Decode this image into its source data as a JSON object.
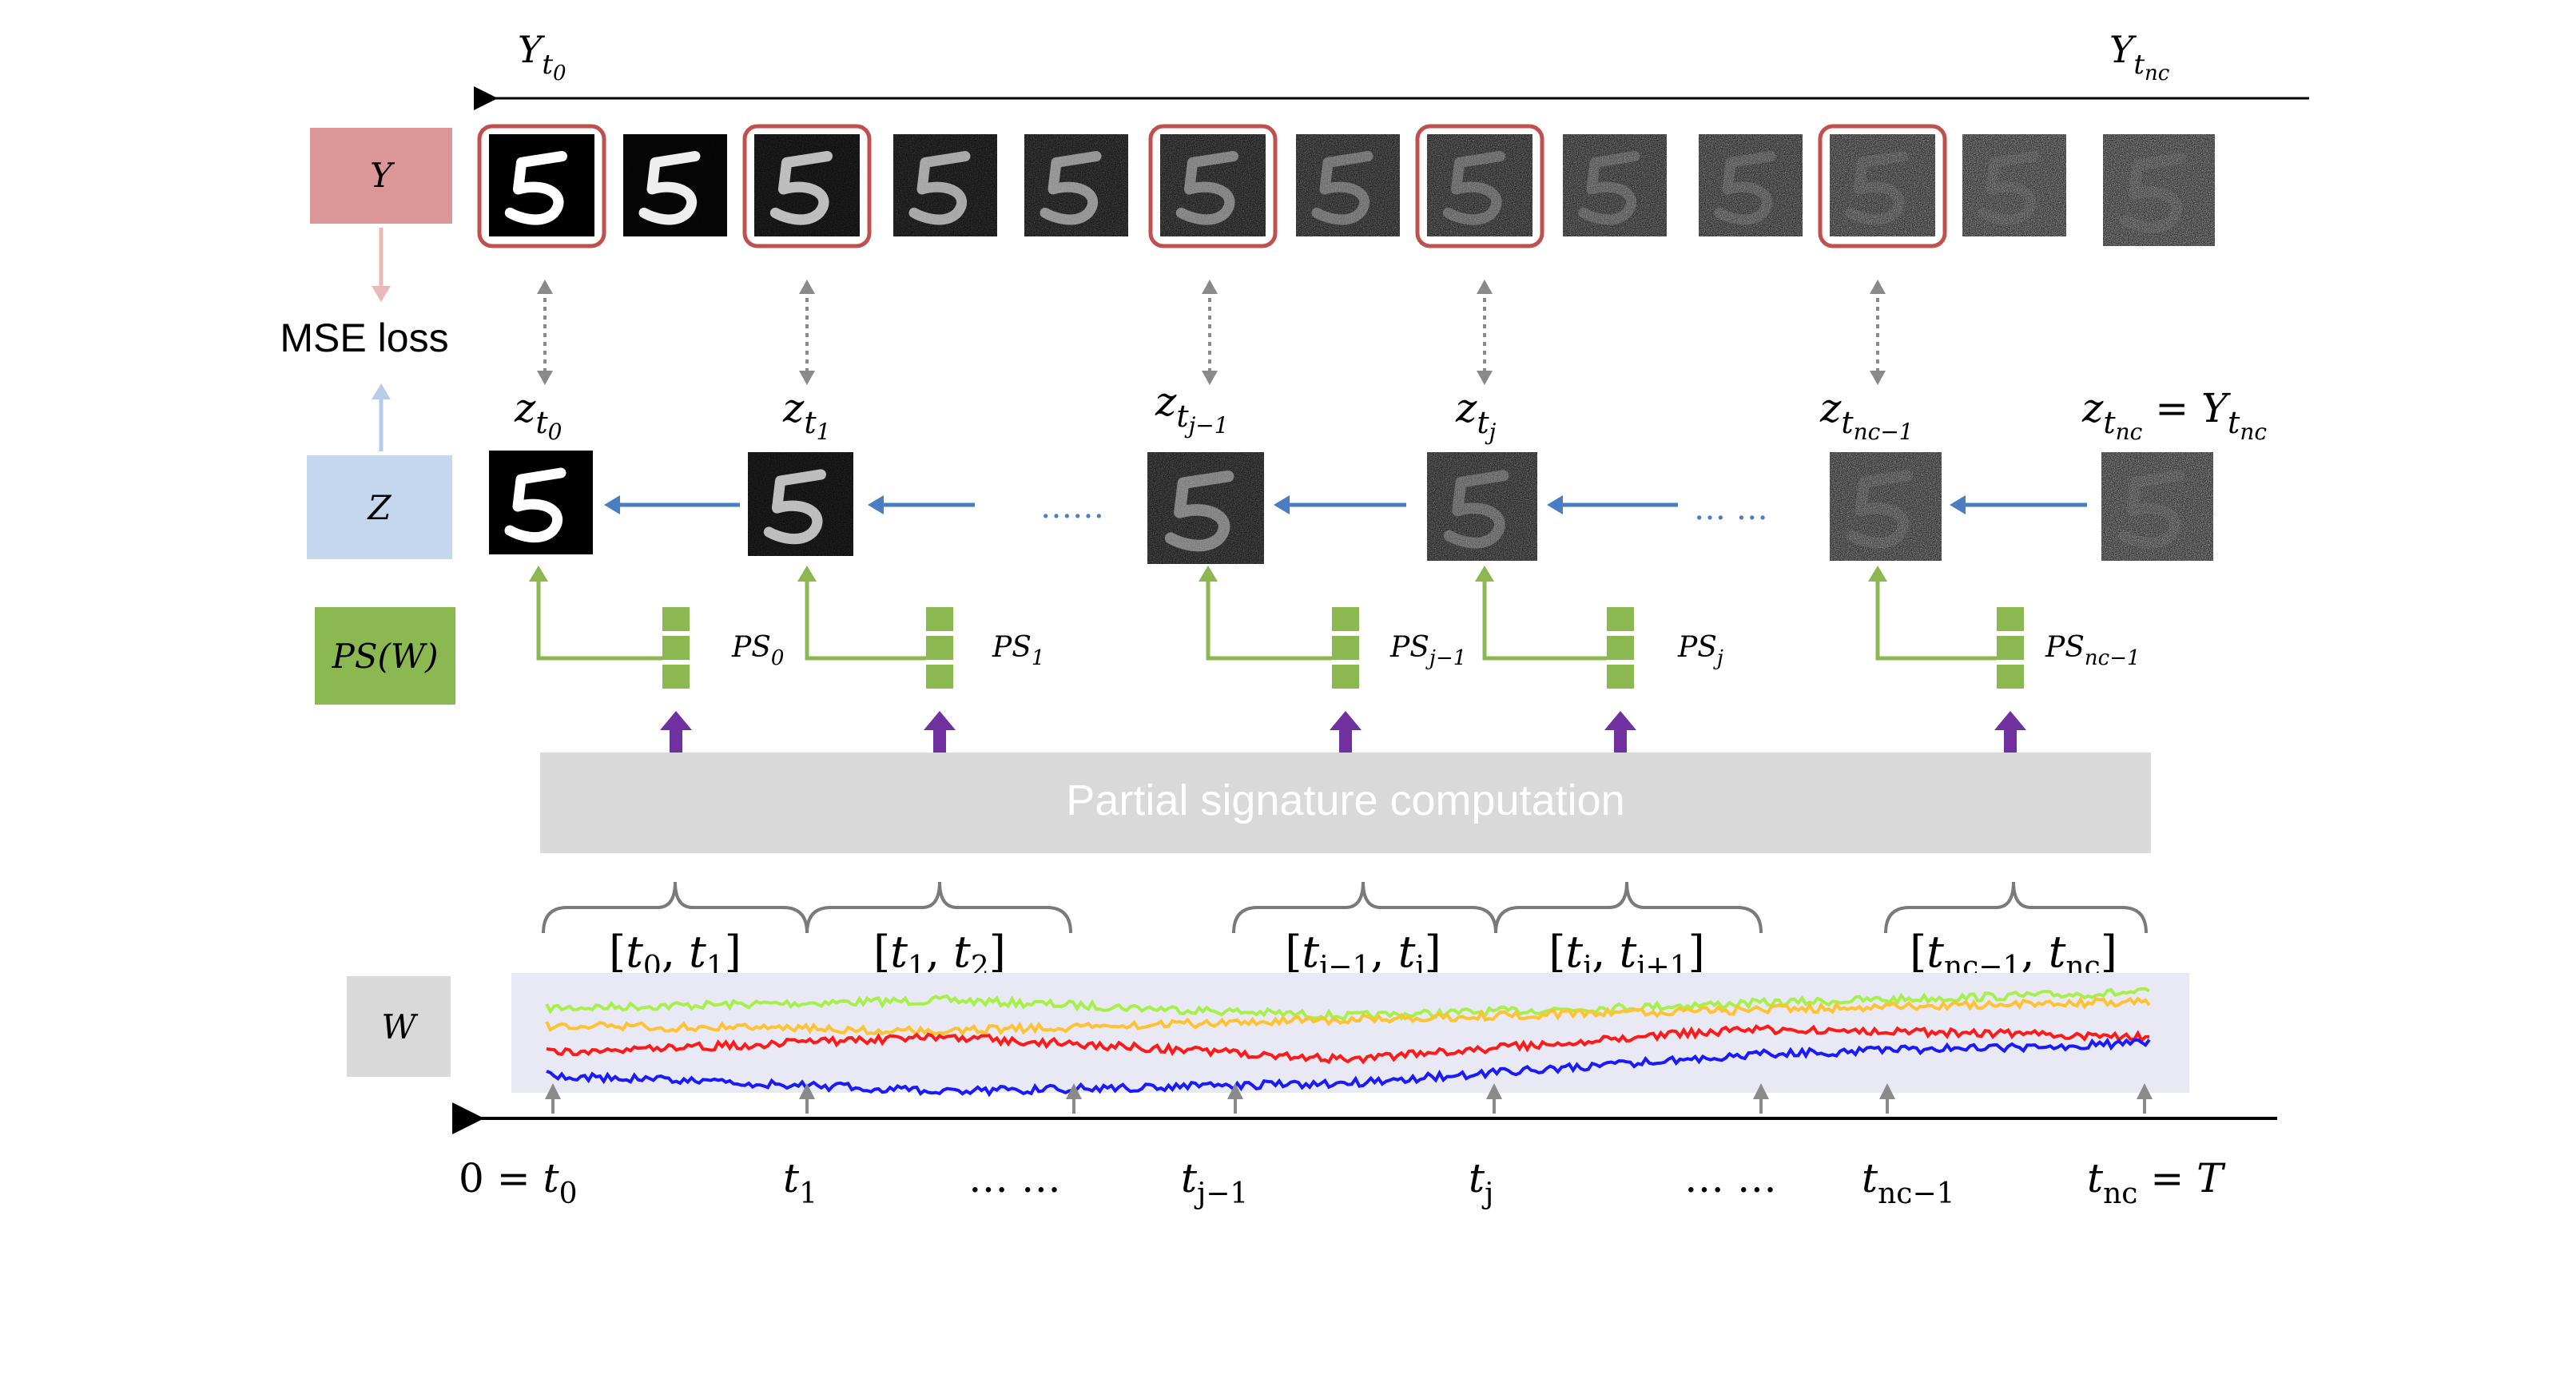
{
  "colors": {
    "y_box": "#DB9797",
    "z_box": "#C4D7EE",
    "ps_box": "#8CB851",
    "w_box": "#D9D9D9",
    "frame_red": "#C0504D",
    "z_arrow": "#4A7EC2",
    "ps_green": "#8CB851",
    "ps_arrow": "#7030A0",
    "band": "#E9E9F5",
    "paths": [
      "#A6F04A",
      "#FFC233",
      "#FF1A1A",
      "#1A1AFF"
    ]
  },
  "labels": {
    "y_box": "Y",
    "z_box": "Z",
    "ps_box": "PS(W)",
    "w_box": "W",
    "mse_loss": "MSE loss",
    "psc_bar": "Partial signature computation",
    "y_left": "Y",
    "y_left_sub": "t",
    "y_left_subsub": "0",
    "y_right": "Y",
    "y_right_sub": "t",
    "y_right_subsub": "nc"
  },
  "y_images": [
    {
      "noise": 0,
      "framed": true
    },
    {
      "noise": 0.06,
      "framed": false
    },
    {
      "noise": 0.25,
      "framed": true
    },
    {
      "noise": 0.35,
      "framed": false
    },
    {
      "noise": 0.45,
      "framed": false
    },
    {
      "noise": 0.55,
      "framed": true
    },
    {
      "noise": 0.65,
      "framed": false
    },
    {
      "noise": 0.72,
      "framed": true
    },
    {
      "noise": 0.8,
      "framed": false
    },
    {
      "noise": 0.85,
      "framed": false
    },
    {
      "noise": 0.9,
      "framed": true
    },
    {
      "noise": 0.94,
      "framed": false
    },
    {
      "noise": 0.98,
      "framed": false
    }
  ],
  "z_nodes": [
    {
      "label": "z",
      "sub": "t",
      "subsub": "0",
      "noise": 0
    },
    {
      "label": "z",
      "sub": "t",
      "subsub": "1",
      "noise": 0.25
    },
    {
      "label": "z",
      "sub": "t",
      "subsub": "j−1",
      "noise": 0.55
    },
    {
      "label": "z",
      "sub": "t",
      "subsub": "j",
      "noise": 0.72
    },
    {
      "label": "z",
      "sub": "t",
      "subsub": "nc−1",
      "noise": 0.9
    },
    {
      "label": "z",
      "sub": "t",
      "subsub": "nc",
      "noise": 0.98,
      "suffix": " = Y",
      "suffix_sub": "t",
      "suffix_subsub": "nc"
    }
  ],
  "z_dots": [
    "……",
    "… …"
  ],
  "ps_items": [
    {
      "label": "PS",
      "sub": "0"
    },
    {
      "label": "PS",
      "sub": "1"
    },
    {
      "label": "PS",
      "sub": "j−1"
    },
    {
      "label": "PS",
      "sub": "j"
    },
    {
      "label": "PS",
      "sub": "nc−1"
    }
  ],
  "intervals": [
    "[t0, t1]",
    "[t1, t2]",
    "[tj−1, tj]",
    "[tj, tj+1]",
    "[tnc−1, tnc]"
  ],
  "interval_parts": [
    {
      "a": "t",
      "as": "0",
      "b": "t",
      "bs": "1"
    },
    {
      "a": "t",
      "as": "1",
      "b": "t",
      "bs": "2"
    },
    {
      "a": "t",
      "as": "j−1",
      "b": "t",
      "bs": "j"
    },
    {
      "a": "t",
      "as": "j",
      "b": "t",
      "bs": "j+1"
    },
    {
      "a": "t",
      "as": "nc−1",
      "b": "t",
      "bs": "nc"
    }
  ],
  "time_labels": [
    {
      "text": "0 = t",
      "sub": "0"
    },
    {
      "text": "t",
      "sub": "1"
    },
    {
      "text": "… …",
      "sub": ""
    },
    {
      "text": "t",
      "sub": "j−1"
    },
    {
      "text": "t",
      "sub": "j"
    },
    {
      "text": "… …",
      "sub": ""
    },
    {
      "text": "t",
      "sub": "nc−1"
    },
    {
      "text": "t",
      "sub": "nc",
      "suffix": " = T"
    }
  ]
}
